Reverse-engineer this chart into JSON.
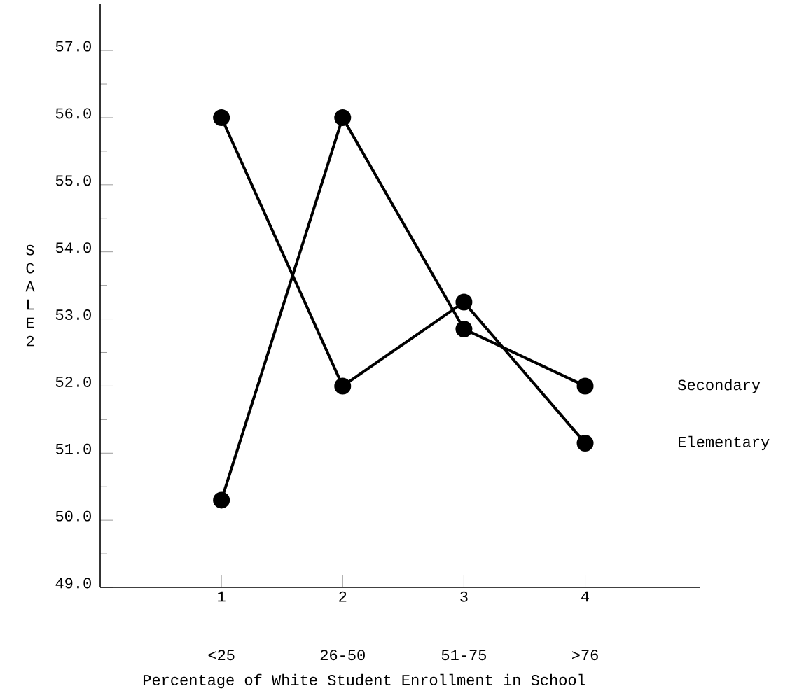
{
  "chart_data": {
    "type": "line",
    "xlabel": "Percentage of White Student Enrollment in School",
    "ylabel": "S C A L E 2",
    "x": [
      1,
      2,
      3,
      4
    ],
    "xlim": [
      0,
      4.95
    ],
    "xticks": [
      {
        "value": 1,
        "label": "1"
      },
      {
        "value": 2,
        "label": "2"
      },
      {
        "value": 3,
        "label": "3"
      },
      {
        "value": 4,
        "label": "4"
      }
    ],
    "ylim": [
      49,
      57.7
    ],
    "yticks": [
      {
        "value": 49,
        "label": "49.0"
      },
      {
        "value": 50,
        "label": "50.0"
      },
      {
        "value": 51,
        "label": "51.0"
      },
      {
        "value": 52,
        "label": "52.0"
      },
      {
        "value": 53,
        "label": "53.0"
      },
      {
        "value": 54,
        "label": "54.0"
      },
      {
        "value": 55,
        "label": "55.0"
      },
      {
        "value": 56,
        "label": "56.0"
      },
      {
        "value": 57,
        "label": "57.0"
      },
      {
        "value": 49.5,
        "label": null
      },
      {
        "value": 50.5,
        "label": null
      },
      {
        "value": 51.5,
        "label": null
      },
      {
        "value": 52.5,
        "label": null
      },
      {
        "value": 53.5,
        "label": null
      },
      {
        "value": 54.5,
        "label": null
      },
      {
        "value": 55.5,
        "label": null
      },
      {
        "value": 56.5,
        "label": null
      }
    ],
    "annotations": [
      "<25",
      "26-50",
      "51-75",
      ">76"
    ],
    "series": [
      {
        "name": "Secondary",
        "color": "#000000",
        "values": [
          50.3,
          56.0,
          52.85,
          52.0
        ]
      },
      {
        "name": "Elementary",
        "color": "#000000",
        "values": [
          56.0,
          52.0,
          53.25,
          51.15
        ]
      }
    ],
    "marker": "circle",
    "line_style": "solid",
    "grid": false,
    "legend": false
  }
}
